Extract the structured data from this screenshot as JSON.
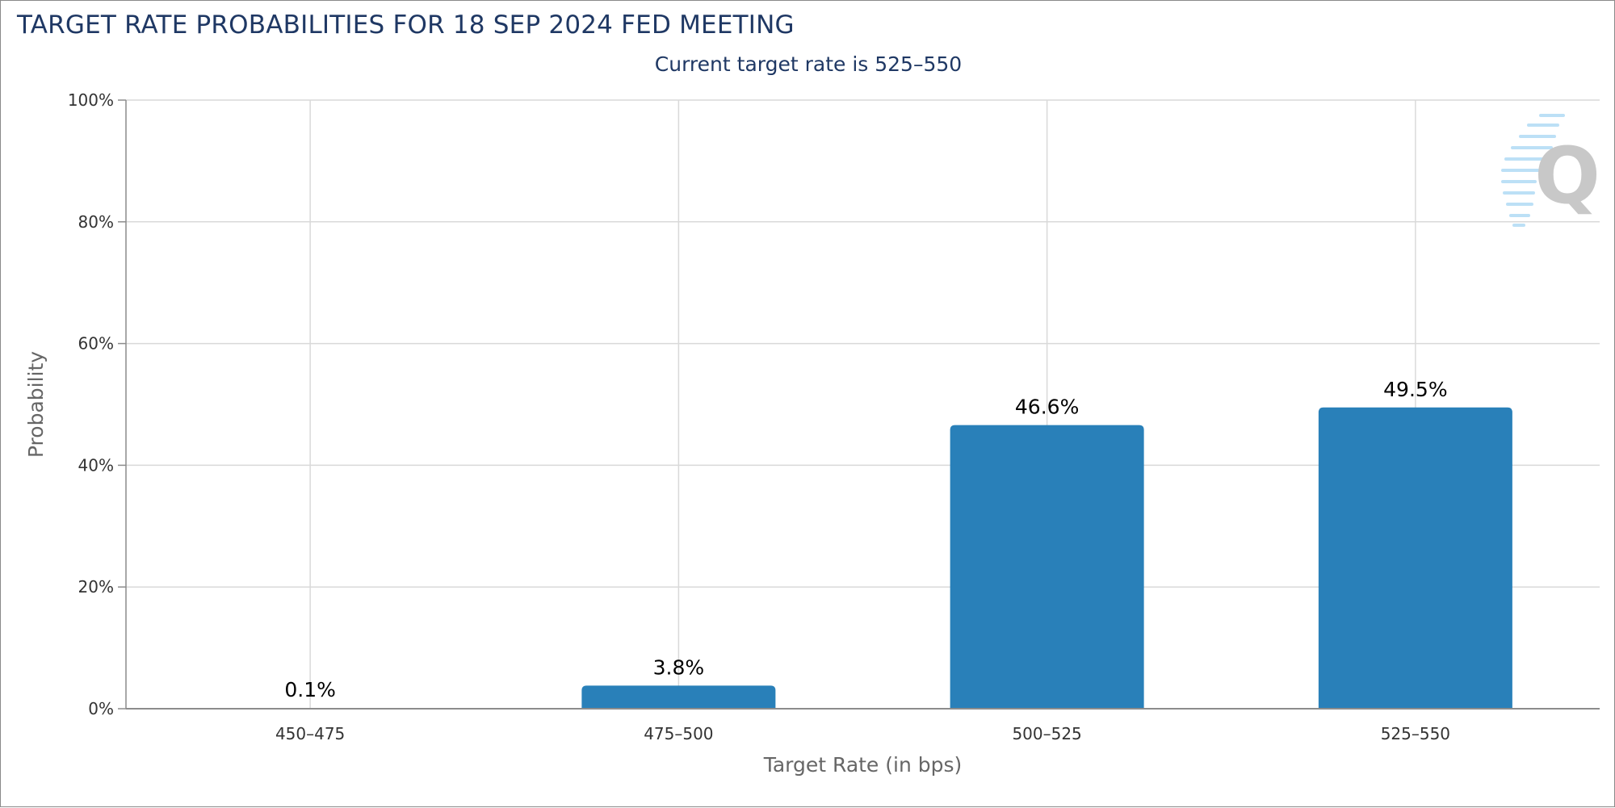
{
  "chart_data": {
    "type": "bar",
    "title": "TARGET RATE PROBABILITIES FOR 18 SEP 2024 FED MEETING",
    "subtitle": "Current target rate is 525–550",
    "categories": [
      "450–475",
      "475–500",
      "500–525",
      "525–550"
    ],
    "values": [
      0.1,
      3.8,
      46.6,
      49.5
    ],
    "data_labels": [
      "0.1%",
      "3.8%",
      "46.6%",
      "49.5%"
    ],
    "xlabel": "Target Rate (in bps)",
    "ylabel": "Probability",
    "ylim": [
      0,
      100
    ],
    "yticks": [
      "0%",
      "20%",
      "40%",
      "60%",
      "80%",
      "100%"
    ],
    "ytick_values": [
      0,
      20,
      40,
      60,
      80,
      100
    ],
    "grid": true,
    "colors": {
      "bar": "#2980b9",
      "title": "#1f3864",
      "grid": "#d9d9d9",
      "axis": "#8c8c8c",
      "watermark_gray": "#c8c8c8",
      "watermark_blue": "#9fd3f2"
    },
    "watermark_icon": "quikstrike-q-logo"
  }
}
